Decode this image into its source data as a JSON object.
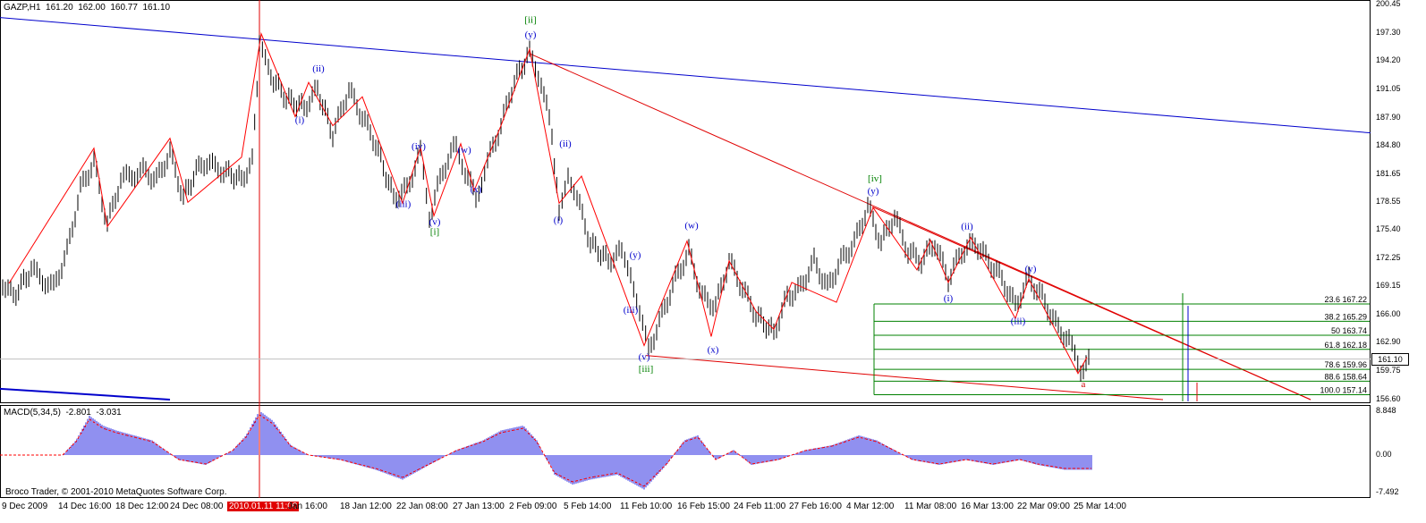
{
  "header": {
    "symbol_title": "GAZP,H1  161.20  162.00  160.77  161.10",
    "macd_title": "MACD(5,34,5)  -2.801  -3.031",
    "copyright": "Broco Trader, © 2001-2010 MetaQuotes Software Corp."
  },
  "price_axis": [
    "200.45",
    "197.30",
    "194.20",
    "191.05",
    "187.90",
    "184.80",
    "181.65",
    "178.55",
    "175.40",
    "172.25",
    "169.15",
    "166.00",
    "162.90",
    "159.75",
    "156.60"
  ],
  "current_price": "161.10",
  "macd_axis": [
    "8.848",
    "0.00",
    "-7.492"
  ],
  "time_axis": [
    {
      "label": "9 Dec 2009",
      "highlight": false
    },
    {
      "label": "14 Dec 16:00",
      "highlight": false
    },
    {
      "label": "18 Dec 12:00",
      "highlight": false
    },
    {
      "label": "24 Dec 08:00",
      "highlight": false
    },
    {
      "label": "2010.01.11 11:00",
      "highlight": true
    },
    {
      "label": "Jan 16:00",
      "highlight": false
    },
    {
      "label": "18 Jan 12:00",
      "highlight": false
    },
    {
      "label": "22 Jan 08:00",
      "highlight": false
    },
    {
      "label": "27 Jan 13:00",
      "highlight": false
    },
    {
      "label": "2 Feb 09:00",
      "highlight": false
    },
    {
      "label": "5 Feb 14:00",
      "highlight": false
    },
    {
      "label": "11 Feb 10:00",
      "highlight": false
    },
    {
      "label": "16 Feb 15:00",
      "highlight": false
    },
    {
      "label": "24 Feb 11:00",
      "highlight": false
    },
    {
      "label": "27 Feb 16:00",
      "highlight": false
    },
    {
      "label": "4 Mar 12:00",
      "highlight": false
    },
    {
      "label": "11 Mar 08:00",
      "highlight": false
    },
    {
      "label": "16 Mar 13:00",
      "highlight": false
    },
    {
      "label": "22 Mar 09:00",
      "highlight": false
    },
    {
      "label": "25 Mar 14:00",
      "highlight": false
    }
  ],
  "fibonacci": [
    {
      "level": "23.6",
      "price": "167.22"
    },
    {
      "level": "38.2",
      "price": "165.29"
    },
    {
      "level": "50",
      "price": "163.74"
    },
    {
      "level": "61.8",
      "price": "162.18"
    },
    {
      "level": "78.6",
      "price": "159.96"
    },
    {
      "level": "88.6",
      "price": "158.64"
    },
    {
      "level": "100.0",
      "price": "157.14"
    }
  ],
  "wave_labels": [
    {
      "text": "[ii]",
      "color": "#008000",
      "price": 198.4
    },
    {
      "text": "(y)",
      "color": "#0000cc",
      "price": 196.8
    },
    {
      "text": "(ii)",
      "color": "#0000cc",
      "price": 193.0
    },
    {
      "text": "(i)",
      "color": "#0000cc",
      "price": 187.3
    },
    {
      "text": "(iv)",
      "color": "#0000cc",
      "price": 184.4
    },
    {
      "text": "(w)",
      "color": "#0000cc",
      "price": 184.0
    },
    {
      "text": "(ii)",
      "color": "#0000cc",
      "price": 184.7
    },
    {
      "text": "(iii)",
      "color": "#0000cc",
      "price": 178.0
    },
    {
      "text": "(v)",
      "color": "#0000cc",
      "price": 176.0
    },
    {
      "text": "[i]",
      "color": "#008000",
      "price": 174.9
    },
    {
      "text": "(x)",
      "color": "#0000cc",
      "price": 179.6
    },
    {
      "text": "(i)",
      "color": "#0000cc",
      "price": 176.2
    },
    {
      "text": "(w)",
      "color": "#0000cc",
      "price": 175.6
    },
    {
      "text": "(y)",
      "color": "#0000cc",
      "price": 172.3
    },
    {
      "text": "(iii)",
      "color": "#0000cc",
      "price": 166.2
    },
    {
      "text": "(v)",
      "color": "#0000cc",
      "price": 161.0
    },
    {
      "text": "[iii]",
      "color": "#008000",
      "price": 159.7
    },
    {
      "text": "(x)",
      "color": "#0000cc",
      "price": 161.8
    },
    {
      "text": "[iv]",
      "color": "#008000",
      "price": 180.8
    },
    {
      "text": "(y)",
      "color": "#0000cc",
      "price": 179.4
    },
    {
      "text": "(i)",
      "color": "#0000cc",
      "price": 167.5
    },
    {
      "text": "(ii)",
      "color": "#0000cc",
      "price": 175.5
    },
    {
      "text": "(iii)",
      "color": "#0000cc",
      "price": 165.0
    },
    {
      "text": "(y)",
      "color": "#0000cc",
      "price": 170.8
    },
    {
      "text": "a",
      "color": "#cc0000",
      "price": 158.0
    }
  ]
}
